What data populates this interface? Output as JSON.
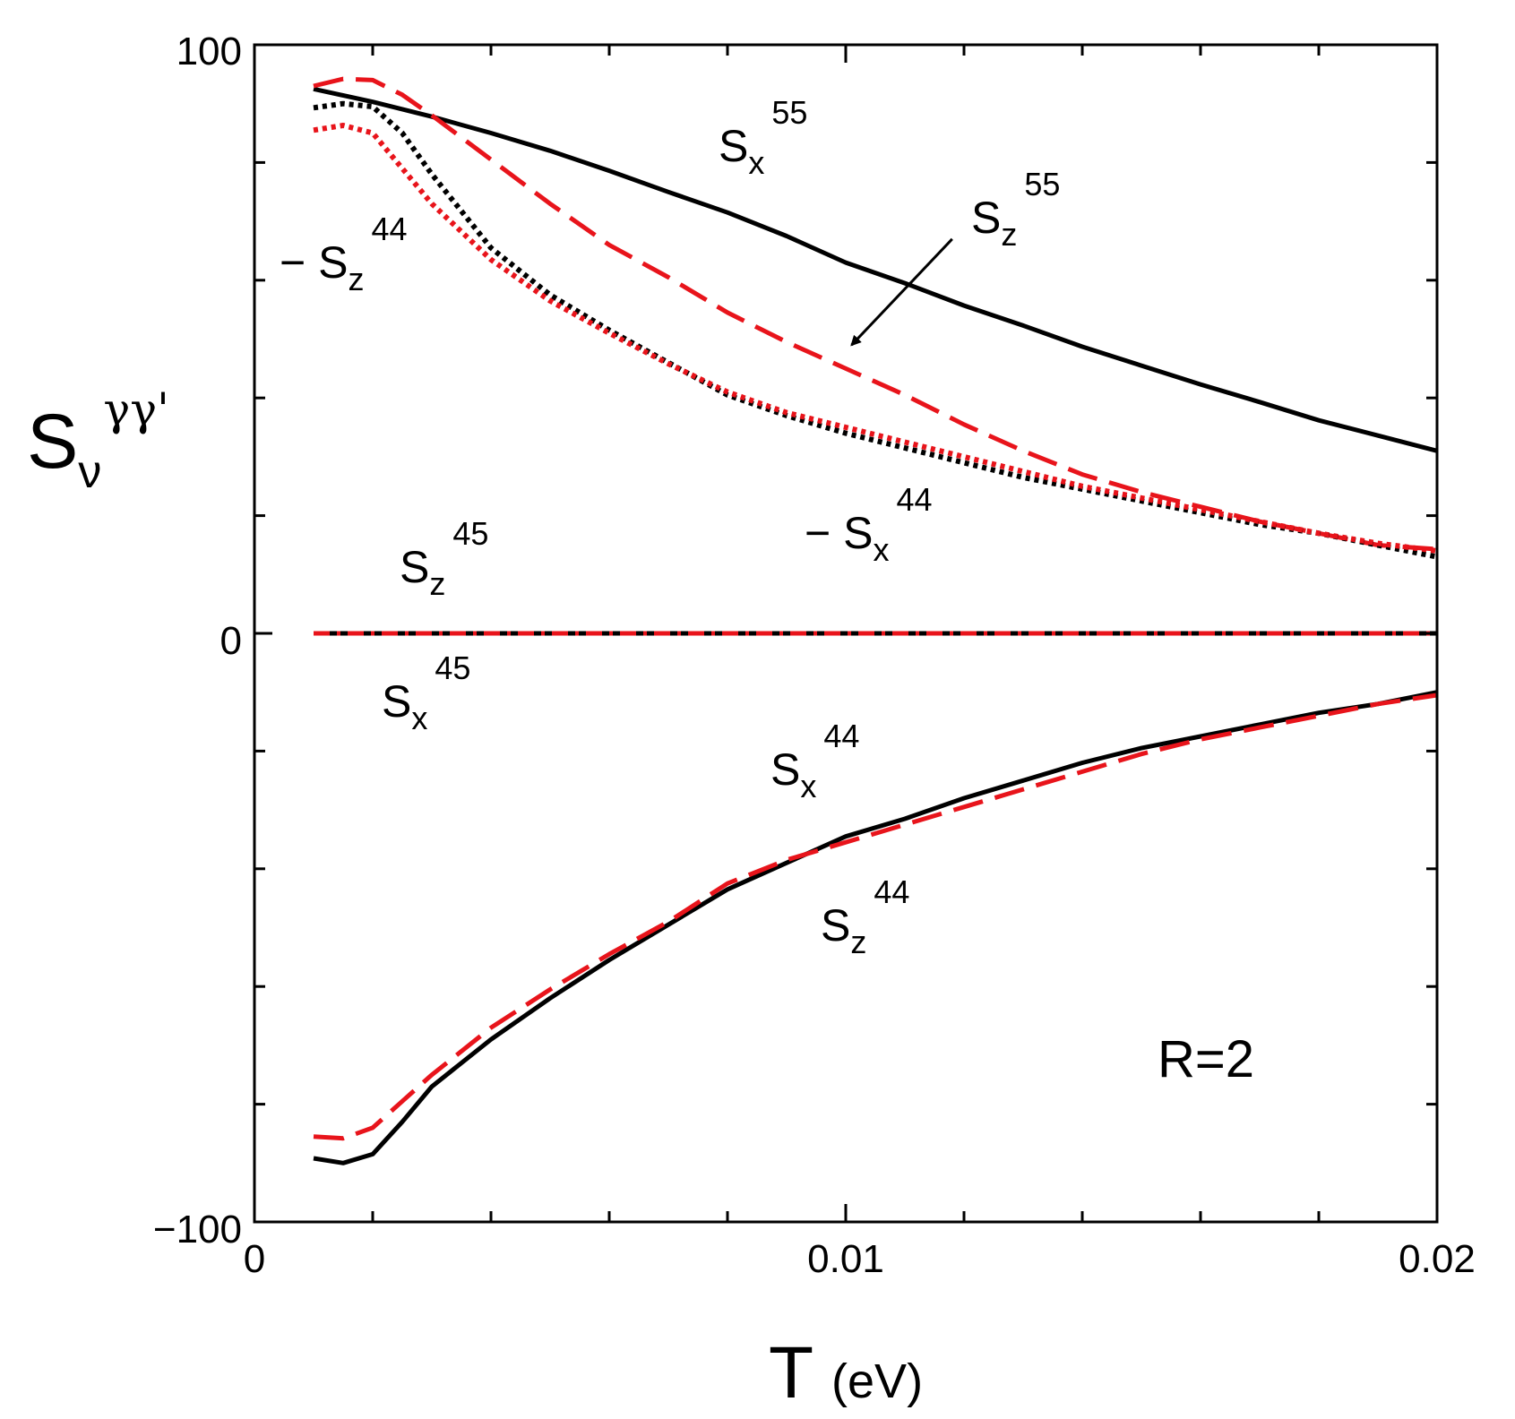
{
  "chart_data": {
    "type": "line",
    "title": "",
    "xlabel": "T",
    "xlabel_unit": "(eV)",
    "ylabel": {
      "base": "S",
      "sub": "ν",
      "sup": "γγ'"
    },
    "xlim": [
      0,
      0.02
    ],
    "ylim": [
      -100,
      100
    ],
    "x_tick_labels": [
      {
        "value": 0,
        "label": "0"
      },
      {
        "value": 0.01,
        "label": "0.01"
      },
      {
        "value": 0.02,
        "label": "0.02"
      }
    ],
    "y_tick_labels": [
      {
        "value": 100,
        "label": "100"
      },
      {
        "value": 0,
        "label": "0"
      },
      {
        "value": -100,
        "label": "−100"
      }
    ],
    "x_minor_ticks": [
      0.002,
      0.004,
      0.006,
      0.008,
      0.012,
      0.014,
      0.016,
      0.018
    ],
    "y_minor_ticks": [
      80,
      60,
      40,
      20,
      -20,
      -40,
      -60,
      -80
    ],
    "series": [
      {
        "name": "Sx55",
        "color": "#000000",
        "style": "solid",
        "x": [
          0.001,
          0.002,
          0.003,
          0.004,
          0.005,
          0.006,
          0.007,
          0.008,
          0.009,
          0.01,
          0.011,
          0.012,
          0.013,
          0.014,
          0.015,
          0.016,
          0.017,
          0.018,
          0.019,
          0.02
        ],
        "y": [
          92.5,
          90.3,
          87.8,
          85.0,
          82.0,
          78.6,
          75.0,
          71.5,
          67.5,
          63.0,
          59.5,
          55.7,
          52.3,
          48.7,
          45.5,
          42.3,
          39.3,
          36.2,
          33.6,
          31.0
        ]
      },
      {
        "name": "Sz55",
        "color": "#e8141b",
        "style": "dashed",
        "x": [
          0.001,
          0.0015,
          0.002,
          0.0025,
          0.003,
          0.004,
          0.005,
          0.006,
          0.007,
          0.008,
          0.009,
          0.01,
          0.011,
          0.012,
          0.013,
          0.014,
          0.015,
          0.016,
          0.017,
          0.018,
          0.019,
          0.02
        ],
        "y": [
          93.0,
          94.2,
          94.0,
          91.5,
          88.0,
          80.5,
          73.0,
          66.0,
          60.5,
          54.5,
          49.5,
          45.0,
          40.5,
          35.5,
          31.0,
          27.0,
          24.0,
          21.5,
          19.0,
          17.0,
          15.0,
          14.3
        ]
      },
      {
        "name": "-Sz44",
        "color": "#000000",
        "style": "dotted",
        "x": [
          0.001,
          0.0015,
          0.002,
          0.0025,
          0.003,
          0.004,
          0.005,
          0.006,
          0.007,
          0.008,
          0.009,
          0.01,
          0.011,
          0.012,
          0.013,
          0.014,
          0.015,
          0.016,
          0.017,
          0.018,
          0.019,
          0.02
        ],
        "y": [
          89.3,
          90.0,
          89.5,
          85.0,
          78.0,
          65.5,
          57.5,
          51.5,
          46.0,
          40.5,
          37.0,
          34.0,
          31.5,
          29.0,
          26.5,
          24.5,
          22.5,
          20.5,
          18.5,
          17.0,
          15.0,
          13.0
        ]
      },
      {
        "name": "-Sx44",
        "color": "#e8141b",
        "style": "dotted",
        "x": [
          0.001,
          0.0015,
          0.002,
          0.0025,
          0.003,
          0.004,
          0.005,
          0.006,
          0.007,
          0.008,
          0.009,
          0.01,
          0.011,
          0.012,
          0.013,
          0.014,
          0.015,
          0.016,
          0.017,
          0.018,
          0.019,
          0.02
        ],
        "y": [
          85.5,
          86.3,
          85.0,
          79.0,
          73.0,
          63.5,
          56.5,
          51.0,
          45.8,
          41.0,
          37.5,
          35.0,
          32.5,
          30.0,
          27.5,
          25.0,
          23.0,
          21.0,
          19.0,
          17.0,
          15.3,
          14.0
        ]
      },
      {
        "name": "Sx45",
        "color": "#000000",
        "style": "solid",
        "x": [
          0.001,
          0.02
        ],
        "y": [
          0,
          0
        ]
      },
      {
        "name": "Sz45",
        "color": "#e8141b",
        "style": "dashdot",
        "x": [
          0.001,
          0.02
        ],
        "y": [
          0,
          0
        ]
      },
      {
        "name": "Sx44",
        "color": "#000000",
        "style": "solid",
        "x": [
          0.001,
          0.0015,
          0.002,
          0.0025,
          0.003,
          0.004,
          0.005,
          0.006,
          0.007,
          0.008,
          0.009,
          0.01,
          0.011,
          0.012,
          0.013,
          0.014,
          0.015,
          0.016,
          0.017,
          0.018,
          0.019,
          0.02
        ],
        "y": [
          -89.2,
          -90.0,
          -88.5,
          -83.0,
          -77.0,
          -69.0,
          -62.0,
          -55.5,
          -49.5,
          -43.5,
          -39.0,
          -34.5,
          -31.5,
          -28.0,
          -25.0,
          -22.0,
          -19.5,
          -17.5,
          -15.5,
          -13.5,
          -12.0,
          -10.0
        ]
      },
      {
        "name": "Sz44",
        "color": "#e8141b",
        "style": "dashed",
        "x": [
          0.001,
          0.0015,
          0.002,
          0.0025,
          0.003,
          0.004,
          0.005,
          0.006,
          0.007,
          0.008,
          0.009,
          0.01,
          0.011,
          0.012,
          0.013,
          0.014,
          0.015,
          0.016,
          0.017,
          0.018,
          0.019,
          0.02
        ],
        "y": [
          -85.5,
          -85.8,
          -84.0,
          -79.5,
          -75.0,
          -67.0,
          -60.5,
          -54.5,
          -49.0,
          -42.5,
          -38.5,
          -35.5,
          -32.5,
          -29.5,
          -26.5,
          -23.5,
          -20.5,
          -18.0,
          -16.0,
          -14.0,
          -12.0,
          -10.5
        ]
      }
    ],
    "annotations": [
      {
        "name": "sx55",
        "base": "S",
        "sub": "x",
        "sup": "55",
        "prefix": ""
      },
      {
        "name": "sz55",
        "base": "S",
        "sub": "z",
        "sup": "55",
        "prefix": ""
      },
      {
        "name": "minus-sz44",
        "base": "S",
        "sub": "z",
        "sup": "44",
        "prefix": "− "
      },
      {
        "name": "minus-sx44",
        "base": "S",
        "sub": "x",
        "sup": "44",
        "prefix": "− "
      },
      {
        "name": "sz45",
        "base": "S",
        "sub": "z",
        "sup": "45",
        "prefix": ""
      },
      {
        "name": "sx45",
        "base": "S",
        "sub": "x",
        "sup": "45",
        "prefix": ""
      },
      {
        "name": "sx44",
        "base": "S",
        "sub": "x",
        "sup": "44",
        "prefix": ""
      },
      {
        "name": "sz44",
        "base": "S",
        "sub": "z",
        "sup": "44",
        "prefix": ""
      }
    ],
    "arrow": {
      "from": [
        0.0118,
        67.0
      ],
      "to": [
        0.0101,
        49.0
      ],
      "target": "Sz55"
    },
    "legend_text": "R=2"
  }
}
